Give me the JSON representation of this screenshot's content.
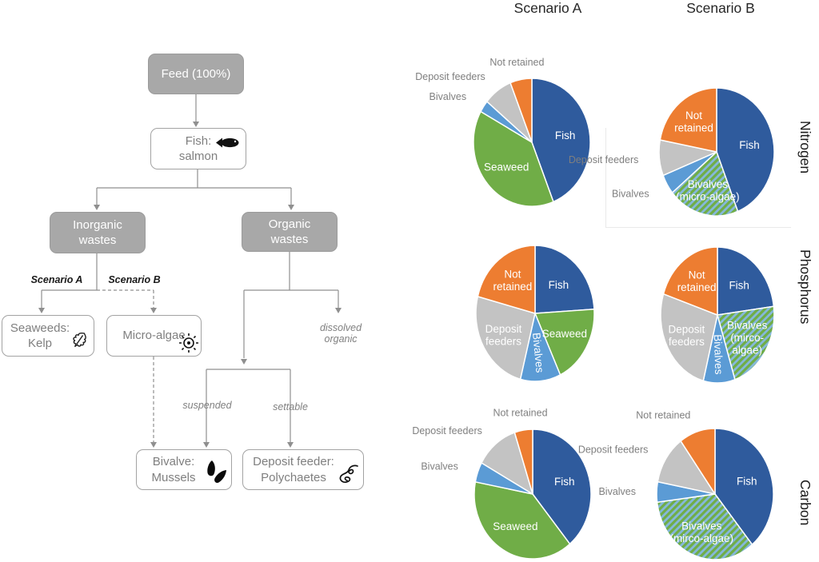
{
  "figure": {
    "headers": {
      "scenario_a": "Scenario A",
      "scenario_b": "Scenario B"
    },
    "row_labels": [
      "Nitrogen",
      "Phosphorus",
      "Carbon"
    ]
  },
  "flowchart": {
    "boxes": {
      "feed": {
        "label": "Feed (100%)"
      },
      "fish": {
        "line1": "Fish:",
        "line2": "salmon",
        "icon": "fish-icon"
      },
      "inorganic": {
        "line1": "Inorganic",
        "line2": "wastes"
      },
      "organic": {
        "line1": "Organic",
        "line2": "wastes"
      },
      "seaweeds": {
        "line1": "Seaweeds:",
        "line2": "Kelp",
        "icon": "kelp-leaf-icon"
      },
      "microalgae": {
        "label": "Micro-algae",
        "icon": "micro-algae-icon"
      },
      "bivalve": {
        "line1": "Bivalve:",
        "line2": "Mussels",
        "icon": "mussels-icon"
      },
      "deposit": {
        "line1": "Deposit feeder:",
        "line2": "Polychaetes",
        "icon": "polychaete-icon"
      }
    },
    "edge_labels": {
      "scenario_a": "Scenario A",
      "scenario_b": "Scenario B",
      "dissolved_line1": "dissolved",
      "dissolved_line2": "organic",
      "suspended": "suspended",
      "settable": "settable"
    }
  },
  "pie_colors": {
    "blue": "#2f5b9d",
    "green": "#70ad47",
    "lightblue": "#5b9bd5",
    "gray": "#c3c3c3",
    "orange": "#ed7d31",
    "hatch_green": "#70ad47",
    "hatch_blue": "#85b8dc",
    "inside_label": "#ffffff",
    "outside_label": "#7f7f7f"
  },
  "chart_data": [
    {
      "type": "pie",
      "id": "nitrogen-scenario-a",
      "nutrient": "Nitrogen",
      "scenario": "Scenario A",
      "labels": [
        "Fish",
        "Seaweed",
        "Bivalves",
        "Deposit feeders",
        "Not retained"
      ],
      "values": [
        44,
        39,
        3,
        8,
        6
      ],
      "colors": [
        "blue",
        "green",
        "lightblue",
        "gray",
        "orange"
      ],
      "label_layout": [
        "inside",
        "inside",
        "outside",
        "outside",
        "outside"
      ]
    },
    {
      "type": "pie",
      "id": "nitrogen-scenario-b",
      "nutrient": "Nitrogen",
      "scenario": "Scenario B",
      "labels": [
        "Fish",
        "Bivalves\n(micro-algae)",
        "Bivalves",
        "Deposit feeders",
        "Not\nretained"
      ],
      "values": [
        44,
        20,
        5,
        9,
        22
      ],
      "colors": [
        "blue",
        "hatch",
        "lightblue",
        "gray",
        "orange"
      ],
      "label_layout": [
        "inside",
        "inside",
        "outside",
        "outside",
        "inside"
      ]
    },
    {
      "type": "pie",
      "id": "phosphorus-scenario-a",
      "nutrient": "Phosphorus",
      "scenario": "Scenario A",
      "labels": [
        "Fish",
        "Seaweed",
        "Bivalves",
        "Deposit\nfeeders",
        "Not\nretained"
      ],
      "values": [
        24,
        19,
        11,
        25,
        21
      ],
      "colors": [
        "blue",
        "green",
        "lightblue",
        "gray",
        "orange"
      ],
      "label_layout": [
        "inside",
        "inside",
        "inside-rot",
        "inside",
        "inside"
      ]
    },
    {
      "type": "pie",
      "id": "phosphorus-scenario-b",
      "nutrient": "Phosphorus",
      "scenario": "Scenario B",
      "labels": [
        "Fish",
        "Bivalves\n(mirco-\nalgae)",
        "Bivalves",
        "Deposit\nfeeders",
        "Not\nretained"
      ],
      "values": [
        23,
        22,
        9,
        26,
        20
      ],
      "colors": [
        "blue",
        "hatch",
        "lightblue",
        "gray",
        "orange"
      ],
      "label_layout": [
        "inside",
        "inside",
        "inside-rot",
        "inside",
        "inside"
      ]
    },
    {
      "type": "pie",
      "id": "carbon-scenario-a",
      "nutrient": "Carbon",
      "scenario": "Scenario A",
      "labels": [
        "Fish",
        "Seaweed",
        "Bivalves",
        "Deposit feeders",
        "Not retained"
      ],
      "values": [
        39,
        39,
        5,
        12,
        5
      ],
      "colors": [
        "blue",
        "green",
        "lightblue",
        "gray",
        "orange"
      ],
      "label_layout": [
        "inside",
        "inside",
        "outside",
        "outside",
        "outside"
      ]
    },
    {
      "type": "pie",
      "id": "carbon-scenario-b",
      "nutrient": "Carbon",
      "scenario": "Scenario B",
      "labels": [
        "Fish",
        "Bivalves\n(mirco-algae)",
        "Bivalves",
        "Deposit feeders",
        "Not retained"
      ],
      "values": [
        39,
        34,
        5,
        12,
        10
      ],
      "colors": [
        "blue",
        "hatch",
        "lightblue",
        "gray",
        "orange"
      ],
      "label_layout": [
        "inside",
        "inside",
        "outside",
        "outside",
        "outside"
      ]
    }
  ]
}
